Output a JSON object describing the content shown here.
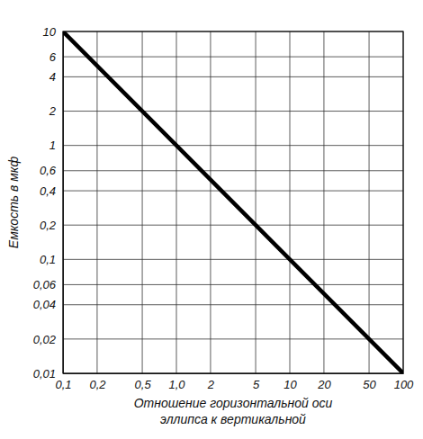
{
  "chart_data": {
    "type": "line",
    "xlabel": "Отношение горизонтальной оси\nэллипса к вертикальной",
    "ylabel": "Емкость в мкф",
    "x": [
      0.1,
      1,
      10,
      100
    ],
    "values": [
      10,
      1,
      0.1,
      0.01
    ],
    "color": "#000000",
    "log": true,
    "grid": true,
    "xlim": [
      0.1,
      100
    ],
    "ylim": [
      0.01,
      10
    ],
    "xticks": [
      {
        "value": 0.1,
        "label": "0,1"
      },
      {
        "value": 0.2,
        "label": "0,2"
      },
      {
        "value": 0.5,
        "label": "0,5"
      },
      {
        "value": 1,
        "label": "1,0"
      },
      2,
      5,
      10,
      20,
      50,
      100
    ],
    "yticks": [
      {
        "value": 0.01,
        "label": "0,01"
      },
      {
        "value": 0.02,
        "label": "0,02"
      },
      {
        "value": 0.04,
        "label": "0,04"
      },
      {
        "value": 0.06,
        "label": "0,06"
      },
      {
        "value": 0.1,
        "label": "0,1"
      },
      {
        "value": 0.2,
        "label": "0,2"
      },
      {
        "value": 0.4,
        "label": "0,4"
      },
      {
        "value": 0.6,
        "label": "0,6"
      },
      1,
      2,
      4,
      6,
      10
    ]
  }
}
